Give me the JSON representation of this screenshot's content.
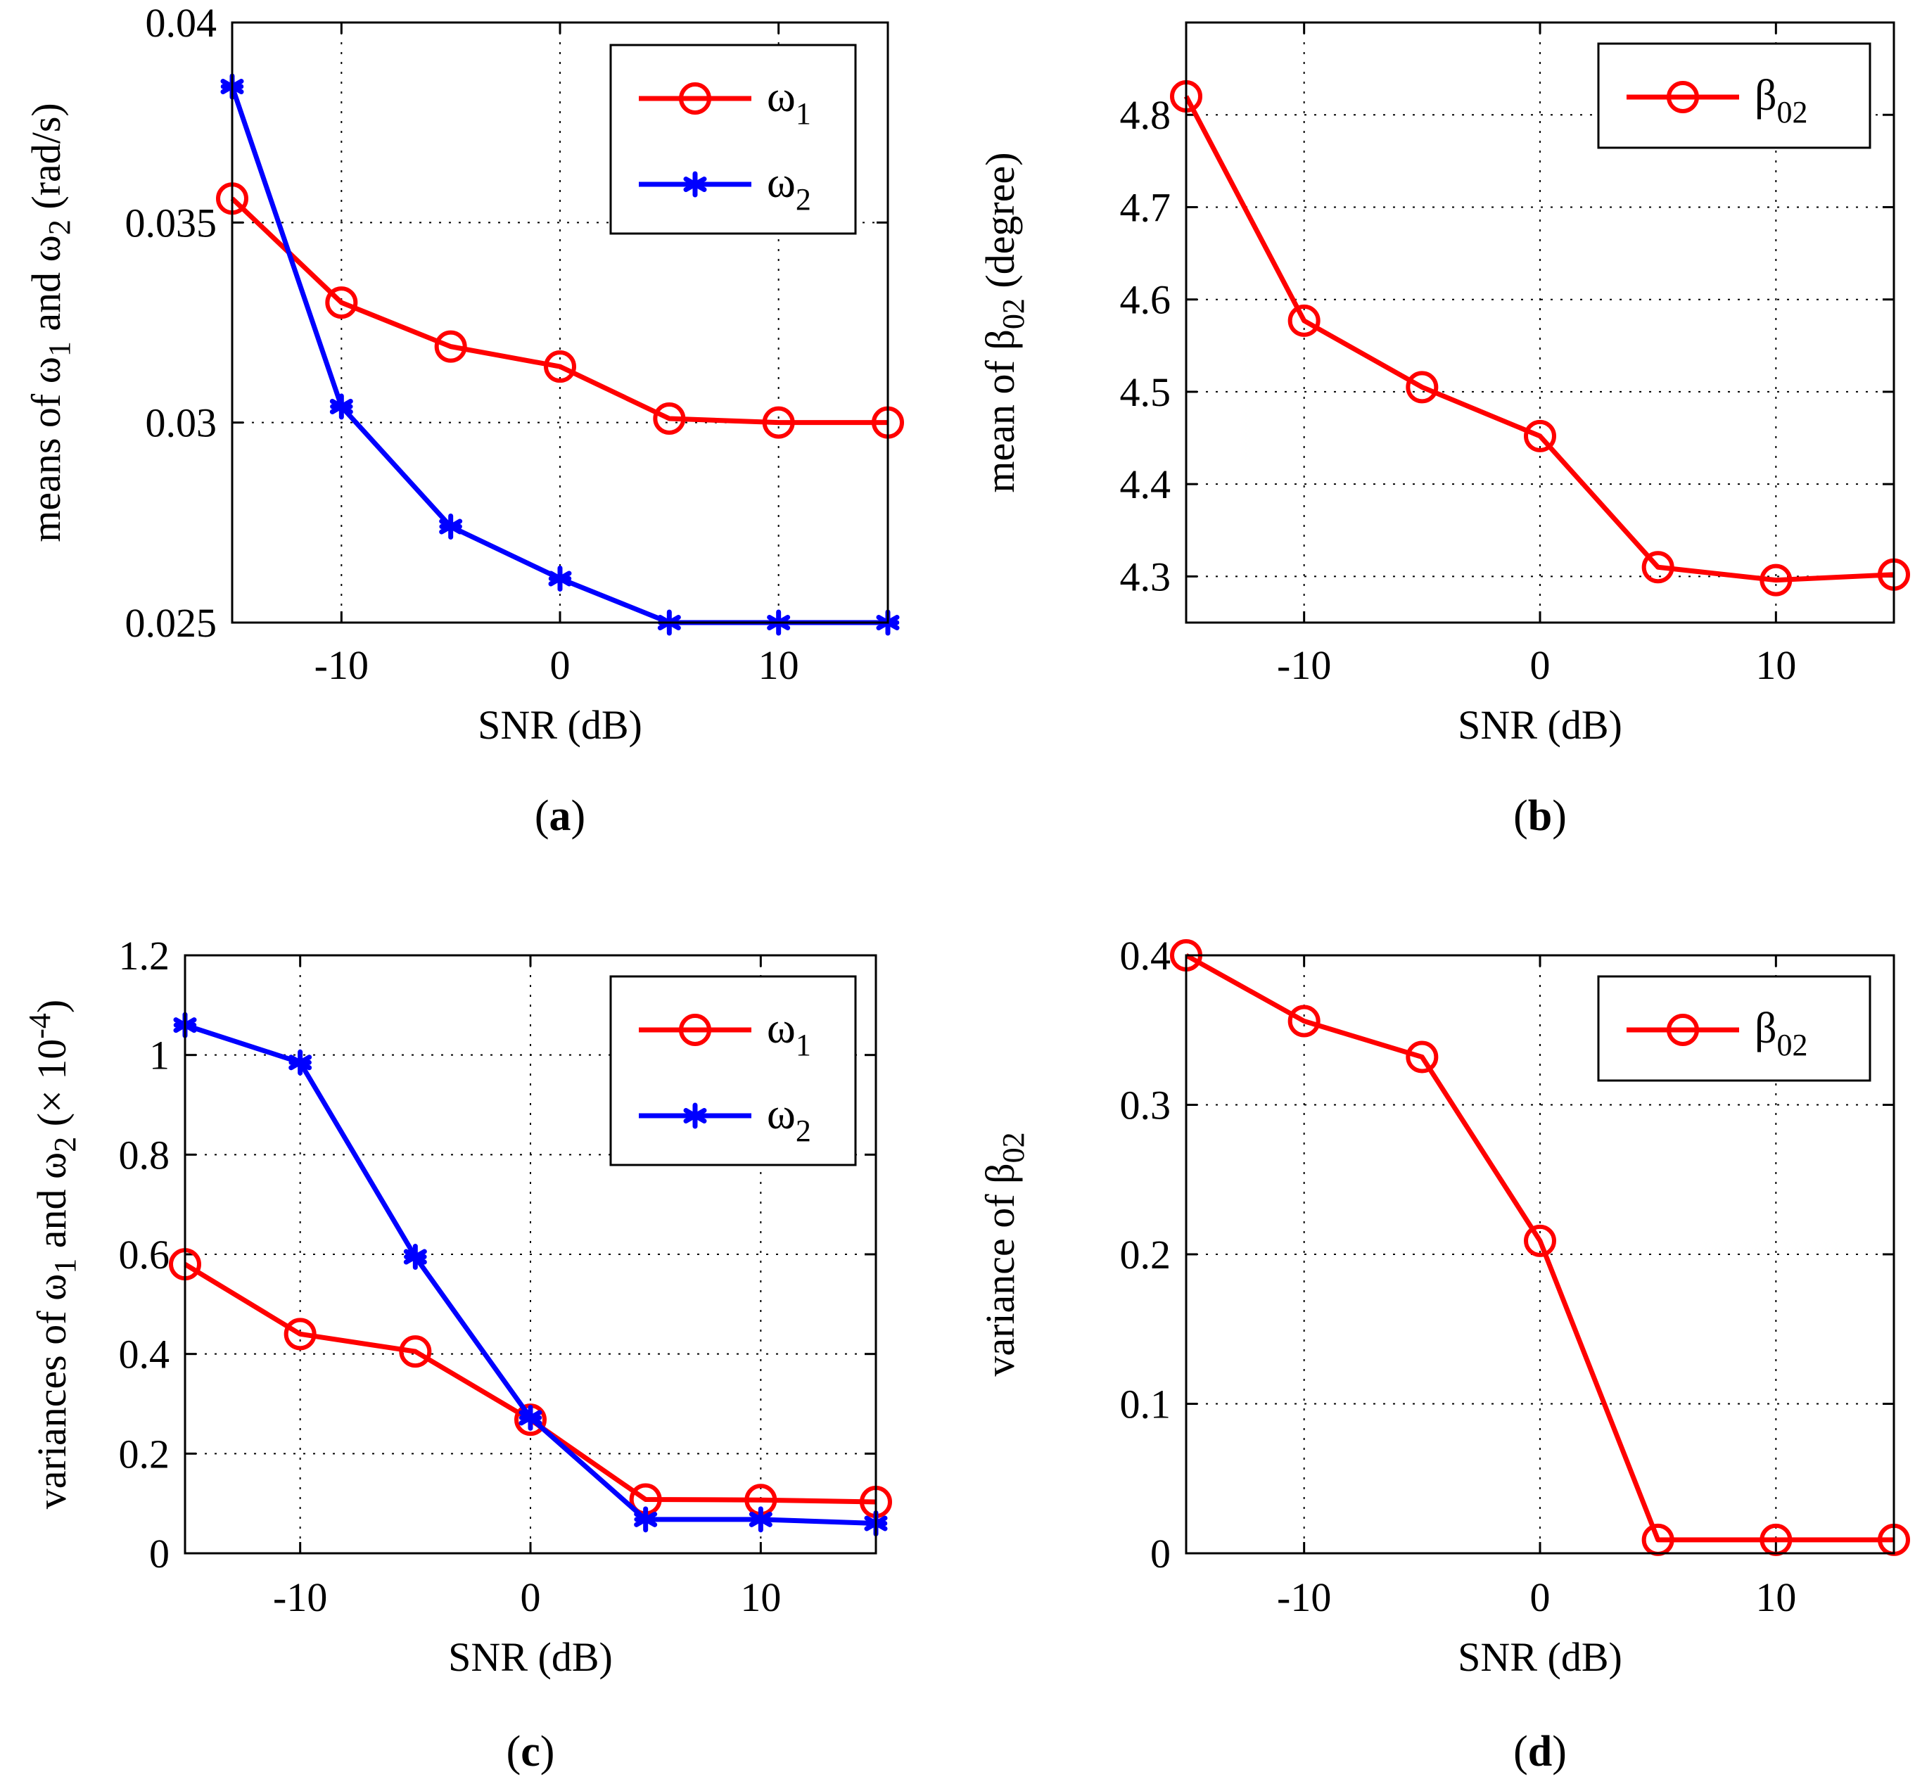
{
  "chart_data": [
    {
      "panel_label": "a",
      "type": "line",
      "xlabel": "SNR (dB)",
      "ylabel": {
        "prefix": "means of ",
        "sym1": "ω",
        "sub1": "1",
        "mid": " and ",
        "sym2": "ω",
        "sub2": "2",
        "suffix": " (rad/s)"
      },
      "xlim": [
        -15,
        15
      ],
      "ylim": [
        0.025,
        0.04
      ],
      "xticks": [
        -10,
        0,
        10
      ],
      "xtick_labels": [
        "-10",
        "0",
        "10"
      ],
      "yticks": [
        0.025,
        0.03,
        0.035,
        0.04
      ],
      "ytick_labels": [
        "0.025",
        "0.03",
        "0.035",
        "0.04"
      ],
      "grid": true,
      "legend_position": "top-right",
      "x": [
        -15,
        -10,
        -5,
        0,
        5,
        10,
        15
      ],
      "series": [
        {
          "name": "ω",
          "name_sub": "1",
          "color": "#ff0000",
          "marker": "circle",
          "values": [
            0.0356,
            0.033,
            0.0319,
            0.0314,
            0.0301,
            0.03,
            0.03
          ]
        },
        {
          "name": "ω",
          "name_sub": "2",
          "color": "#0000ff",
          "marker": "asterisk",
          "values": [
            0.0384,
            0.0304,
            0.0274,
            0.0261,
            0.025,
            0.025,
            0.025
          ]
        }
      ]
    },
    {
      "panel_label": "b",
      "type": "line",
      "xlabel": "SNR (dB)",
      "ylabel": {
        "prefix": "mean of ",
        "sym1": "β",
        "sub1": "02",
        "suffix": " (degree)"
      },
      "xlim": [
        -15,
        15
      ],
      "ylim": [
        4.25,
        4.9
      ],
      "xticks": [
        -10,
        0,
        10
      ],
      "xtick_labels": [
        "-10",
        "0",
        "10"
      ],
      "yticks": [
        4.3,
        4.4,
        4.5,
        4.6,
        4.7,
        4.8
      ],
      "ytick_labels": [
        "4.3",
        "4.4",
        "4.5",
        "4.6",
        "4.7",
        "4.8"
      ],
      "grid": true,
      "legend_position": "top-right",
      "x": [
        -15,
        -10,
        -5,
        0,
        5,
        10,
        15
      ],
      "series": [
        {
          "name": "β",
          "name_sub": "02",
          "color": "#ff0000",
          "marker": "circle",
          "values": [
            4.82,
            4.577,
            4.505,
            4.452,
            4.31,
            4.296,
            4.302
          ]
        }
      ]
    },
    {
      "panel_label": "c",
      "type": "line",
      "xlabel": "SNR (dB)",
      "ylabel": {
        "prefix": "variances of ",
        "sym1": "ω",
        "sub1": "1",
        "mid": " and ",
        "sym2": "ω",
        "sub2": "2",
        "suffix": " (× 10",
        "sup": "-4",
        "end": ")"
      },
      "xlim": [
        -15,
        15
      ],
      "ylim": [
        0,
        1.2
      ],
      "xticks": [
        -10,
        0,
        10
      ],
      "xtick_labels": [
        "-10",
        "0",
        "10"
      ],
      "yticks": [
        0,
        0.2,
        0.4,
        0.6,
        0.8,
        1.0,
        1.2
      ],
      "ytick_labels": [
        "0",
        "0.2",
        "0.4",
        "0.6",
        "0.8",
        "1",
        "1.2"
      ],
      "grid": true,
      "legend_position": "top-right",
      "x": [
        -15,
        -10,
        -5,
        0,
        5,
        10,
        15
      ],
      "series": [
        {
          "name": "ω",
          "name_sub": "1",
          "color": "#ff0000",
          "marker": "circle",
          "values": [
            0.58,
            0.44,
            0.405,
            0.268,
            0.108,
            0.107,
            0.103
          ]
        },
        {
          "name": "ω",
          "name_sub": "2",
          "color": "#0000ff",
          "marker": "asterisk",
          "values": [
            1.06,
            0.985,
            0.595,
            0.272,
            0.068,
            0.068,
            0.06
          ]
        }
      ]
    },
    {
      "panel_label": "d",
      "type": "line",
      "xlabel": "SNR (dB)",
      "ylabel": {
        "prefix": "variance of ",
        "sym1": "β",
        "sub1": "02"
      },
      "xlim": [
        -15,
        15
      ],
      "ylim": [
        0,
        0.4
      ],
      "xticks": [
        -10,
        0,
        10
      ],
      "xtick_labels": [
        "-10",
        "0",
        "10"
      ],
      "yticks": [
        0,
        0.1,
        0.2,
        0.3,
        0.4
      ],
      "ytick_labels": [
        "0",
        "0.1",
        "0.2",
        "0.3",
        "0.4"
      ],
      "grid": true,
      "legend_position": "top-right",
      "x": [
        -15,
        -10,
        -5,
        0,
        5,
        10,
        15
      ],
      "series": [
        {
          "name": "β",
          "name_sub": "02",
          "color": "#ff0000",
          "marker": "circle",
          "values": [
            0.4,
            0.356,
            0.332,
            0.209,
            0.009,
            0.009,
            0.009
          ]
        }
      ]
    }
  ]
}
